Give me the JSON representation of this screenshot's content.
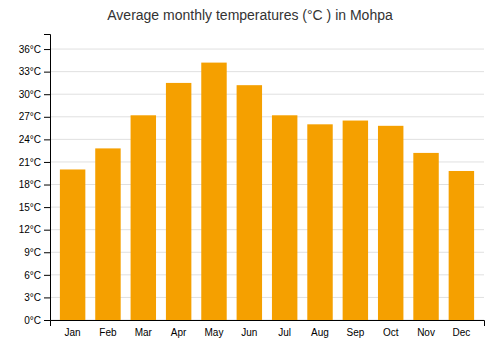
{
  "chart_data": {
    "type": "bar",
    "title": "Average monthly temperatures (°C ) in Mohpa",
    "categories": [
      "Jan",
      "Feb",
      "Mar",
      "Apr",
      "May",
      "Jun",
      "Jul",
      "Aug",
      "Sep",
      "Oct",
      "Nov",
      "Dec"
    ],
    "values": [
      20.0,
      22.8,
      27.2,
      31.5,
      34.2,
      31.2,
      27.2,
      26.0,
      26.5,
      25.8,
      22.2,
      19.8
    ],
    "color": "#F5A000",
    "ylim": [
      0,
      38
    ],
    "yticks": [
      {
        "value": 0,
        "label": "0°C"
      },
      {
        "value": 3,
        "label": "3°C"
      },
      {
        "value": 6,
        "label": "6°C"
      },
      {
        "value": 9,
        "label": "9°C"
      },
      {
        "value": 12,
        "label": "12°C"
      },
      {
        "value": 15,
        "label": "15°C"
      },
      {
        "value": 18,
        "label": "18°C"
      },
      {
        "value": 21,
        "label": "21°C"
      },
      {
        "value": 24,
        "label": "24°C"
      },
      {
        "value": 27,
        "label": "27°C"
      },
      {
        "value": 30,
        "label": "30°C"
      },
      {
        "value": 33,
        "label": "33°C"
      },
      {
        "value": 36,
        "label": "36°C"
      }
    ],
    "grid": true
  }
}
